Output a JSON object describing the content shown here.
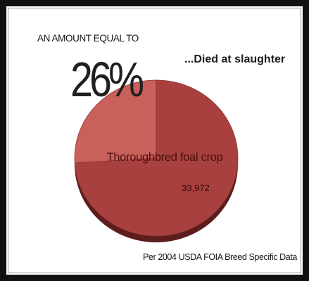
{
  "header": {
    "headline": "AN AMOUNT EQUAL TO",
    "percent_text": "26%"
  },
  "footer": {
    "source": "Per 2004 USDA FOIA Breed Specific Data"
  },
  "colors": {
    "main_slice": "#a8403f",
    "highlight_slice": "#c9605a",
    "pie_shadow": "#5c1d1c",
    "crop_label_text": "#4a1010",
    "count_text": "#2a0707"
  },
  "chart_data": {
    "type": "pie",
    "title": "",
    "slices": [
      {
        "label": "...Died at slaughter",
        "value": 26,
        "unit": "%"
      },
      {
        "label": "Thoroughbred foal crop",
        "value": 74,
        "unit": "%",
        "annotation": "33,972"
      }
    ],
    "start_angle_deg": 0,
    "direction": "counter-clockwise",
    "style": "3d-tilted",
    "legend": "none"
  }
}
